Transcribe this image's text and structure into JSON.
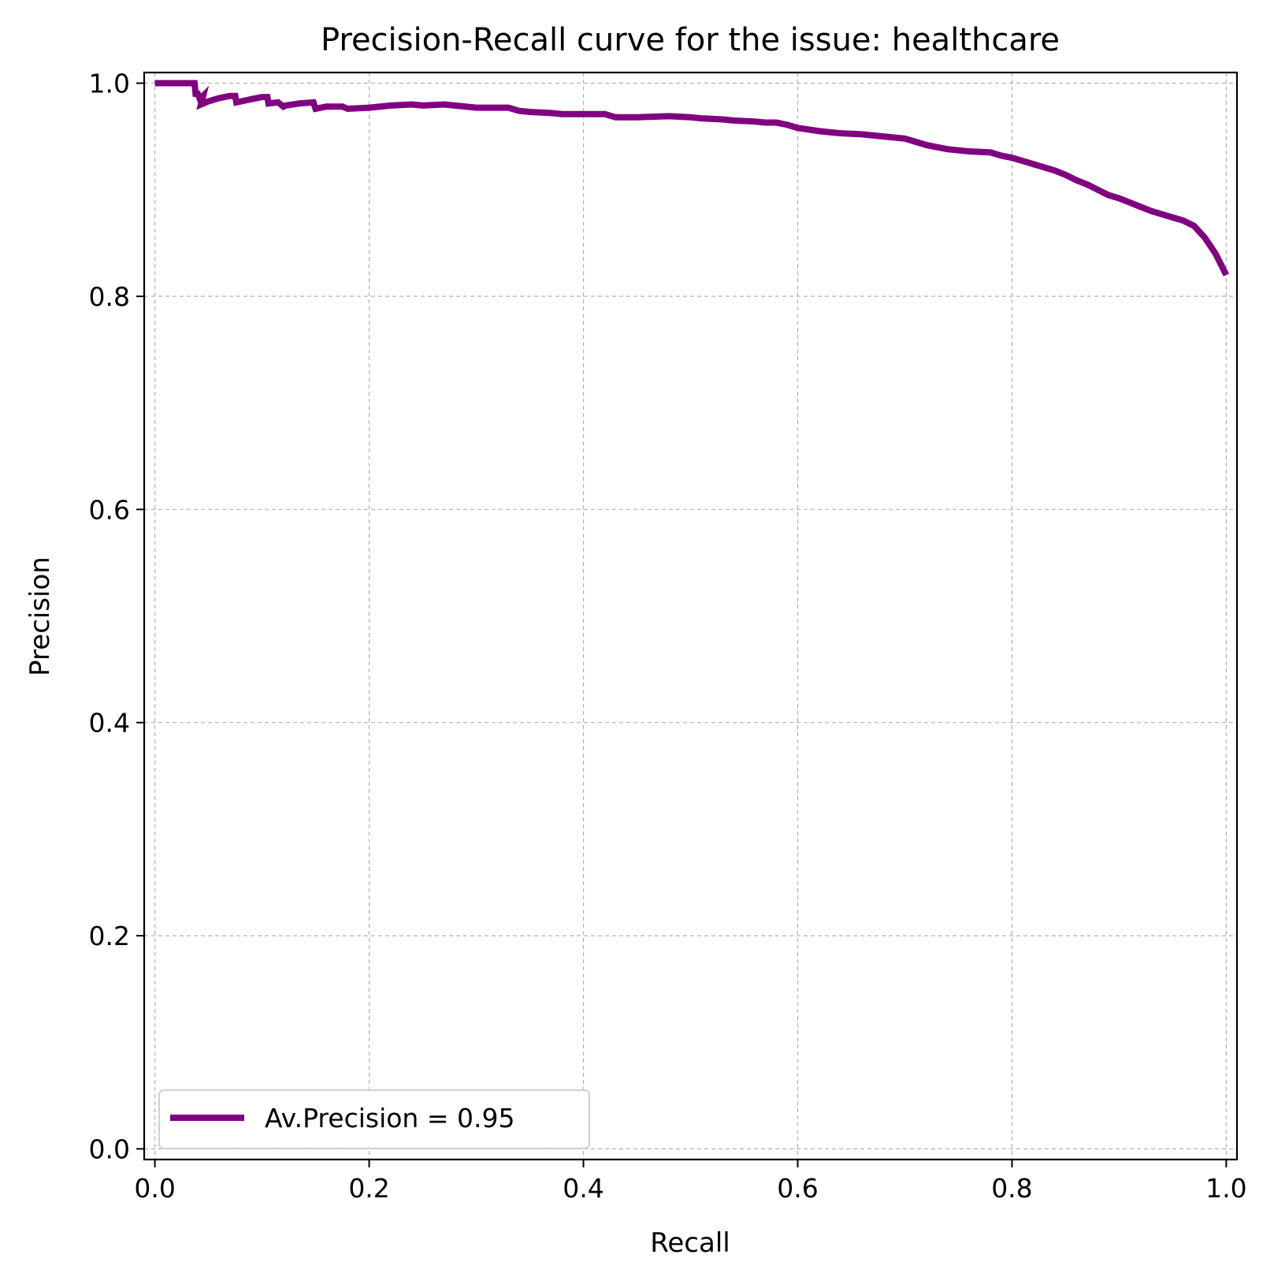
{
  "chart_data": {
    "type": "line",
    "title": "Precision-Recall curve for the issue: healthcare",
    "xlabel": "Recall",
    "ylabel": "Precision",
    "xlim": [
      -0.01,
      1.01
    ],
    "ylim": [
      -0.01,
      1.01
    ],
    "xticks": [
      {
        "value": 0.0,
        "label": "0.0"
      },
      {
        "value": 0.2,
        "label": "0.2"
      },
      {
        "value": 0.4,
        "label": "0.4"
      },
      {
        "value": 0.6,
        "label": "0.6"
      },
      {
        "value": 0.8,
        "label": "0.8"
      },
      {
        "value": 1.0,
        "label": "1.0"
      }
    ],
    "yticks": [
      {
        "value": 0.0,
        "label": "0.0"
      },
      {
        "value": 0.2,
        "label": "0.2"
      },
      {
        "value": 0.4,
        "label": "0.4"
      },
      {
        "value": 0.6,
        "label": "0.6"
      },
      {
        "value": 0.8,
        "label": "0.8"
      },
      {
        "value": 1.0,
        "label": "1.0"
      }
    ],
    "grid": true,
    "legend_position": "lower-left",
    "series": [
      {
        "name": "Av.Precision = 0.95",
        "color": "#800080",
        "x": [
          0.0,
          0.02,
          0.037,
          0.038,
          0.04,
          0.042,
          0.045,
          0.043,
          0.05,
          0.06,
          0.07,
          0.075,
          0.076,
          0.09,
          0.1,
          0.105,
          0.106,
          0.115,
          0.12,
          0.122,
          0.135,
          0.148,
          0.15,
          0.16,
          0.175,
          0.18,
          0.2,
          0.22,
          0.24,
          0.25,
          0.27,
          0.3,
          0.33,
          0.34,
          0.35,
          0.37,
          0.38,
          0.4,
          0.42,
          0.43,
          0.45,
          0.48,
          0.5,
          0.51,
          0.53,
          0.54,
          0.56,
          0.57,
          0.58,
          0.59,
          0.6,
          0.62,
          0.63,
          0.64,
          0.66,
          0.68,
          0.7,
          0.71,
          0.72,
          0.73,
          0.74,
          0.76,
          0.78,
          0.79,
          0.8,
          0.81,
          0.82,
          0.83,
          0.84,
          0.85,
          0.86,
          0.87,
          0.88,
          0.89,
          0.9,
          0.91,
          0.92,
          0.93,
          0.94,
          0.95,
          0.96,
          0.97,
          0.98,
          0.99,
          0.995,
          1.0
        ],
        "y": [
          1.0,
          1.0,
          1.0,
          0.99,
          0.99,
          0.985,
          0.988,
          0.98,
          0.983,
          0.986,
          0.988,
          0.988,
          0.982,
          0.985,
          0.987,
          0.987,
          0.981,
          0.982,
          0.978,
          0.979,
          0.981,
          0.982,
          0.976,
          0.978,
          0.978,
          0.976,
          0.977,
          0.979,
          0.98,
          0.979,
          0.98,
          0.977,
          0.977,
          0.974,
          0.973,
          0.972,
          0.971,
          0.971,
          0.971,
          0.968,
          0.968,
          0.969,
          0.968,
          0.967,
          0.966,
          0.965,
          0.964,
          0.963,
          0.963,
          0.961,
          0.958,
          0.955,
          0.954,
          0.953,
          0.952,
          0.95,
          0.948,
          0.945,
          0.942,
          0.94,
          0.938,
          0.936,
          0.935,
          0.932,
          0.93,
          0.927,
          0.924,
          0.921,
          0.918,
          0.914,
          0.909,
          0.905,
          0.9,
          0.895,
          0.892,
          0.888,
          0.884,
          0.88,
          0.877,
          0.874,
          0.871,
          0.866,
          0.855,
          0.84,
          0.83,
          0.82
        ]
      }
    ]
  }
}
